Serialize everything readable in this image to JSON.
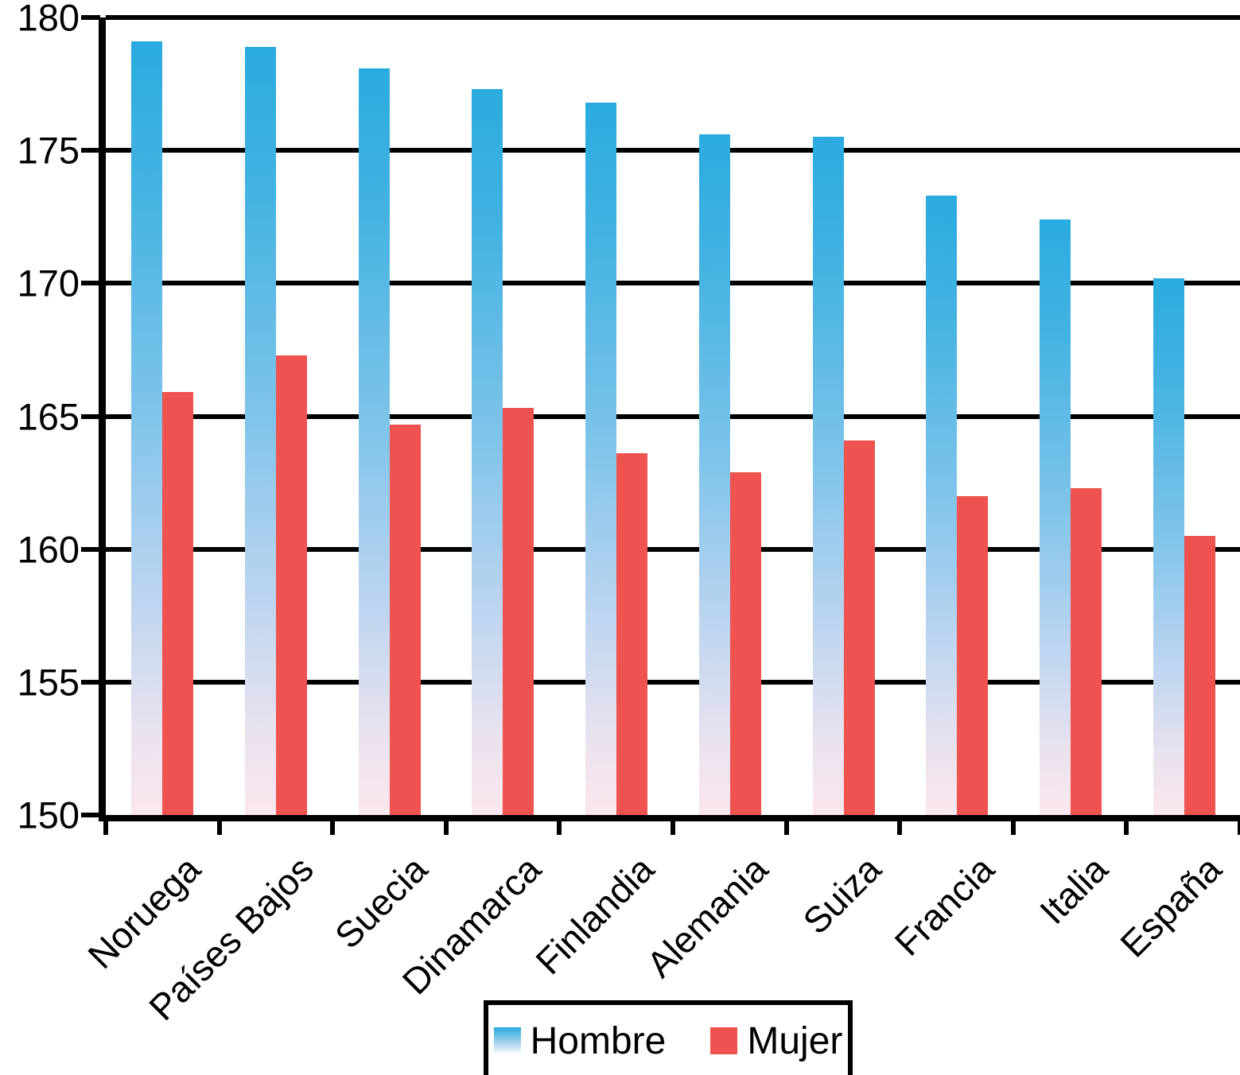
{
  "chart_data": {
    "type": "bar",
    "title": "",
    "categories": [
      "Noruega",
      "Países Bajos",
      "Suecia",
      "Dinamarca",
      "Finlandia",
      "Alemania",
      "Suiza",
      "Francia",
      "Italia",
      "España"
    ],
    "series": [
      {
        "name": "Hombre",
        "values": [
          179.1,
          178.9,
          178.1,
          177.3,
          176.8,
          175.6,
          175.5,
          173.3,
          172.4,
          170.2
        ]
      },
      {
        "name": "Mujer",
        "values": [
          165.9,
          167.3,
          164.7,
          165.3,
          163.6,
          162.9,
          164.1,
          162.0,
          162.3,
          160.5
        ]
      }
    ],
    "ylim": [
      150,
      180
    ],
    "yticks": [
      180,
      175,
      170,
      165,
      160,
      155,
      150
    ],
    "grid": "horizontal-black",
    "legend_position": "bottom-center",
    "colors": {
      "hombre_top": "#2aabdf",
      "hombre_bottom_fade": "#fbe7ef",
      "mujer": "#ee5350",
      "axis": "#000000"
    }
  },
  "legend": {
    "hombre_label": "Hombre",
    "mujer_label": "Mujer"
  }
}
